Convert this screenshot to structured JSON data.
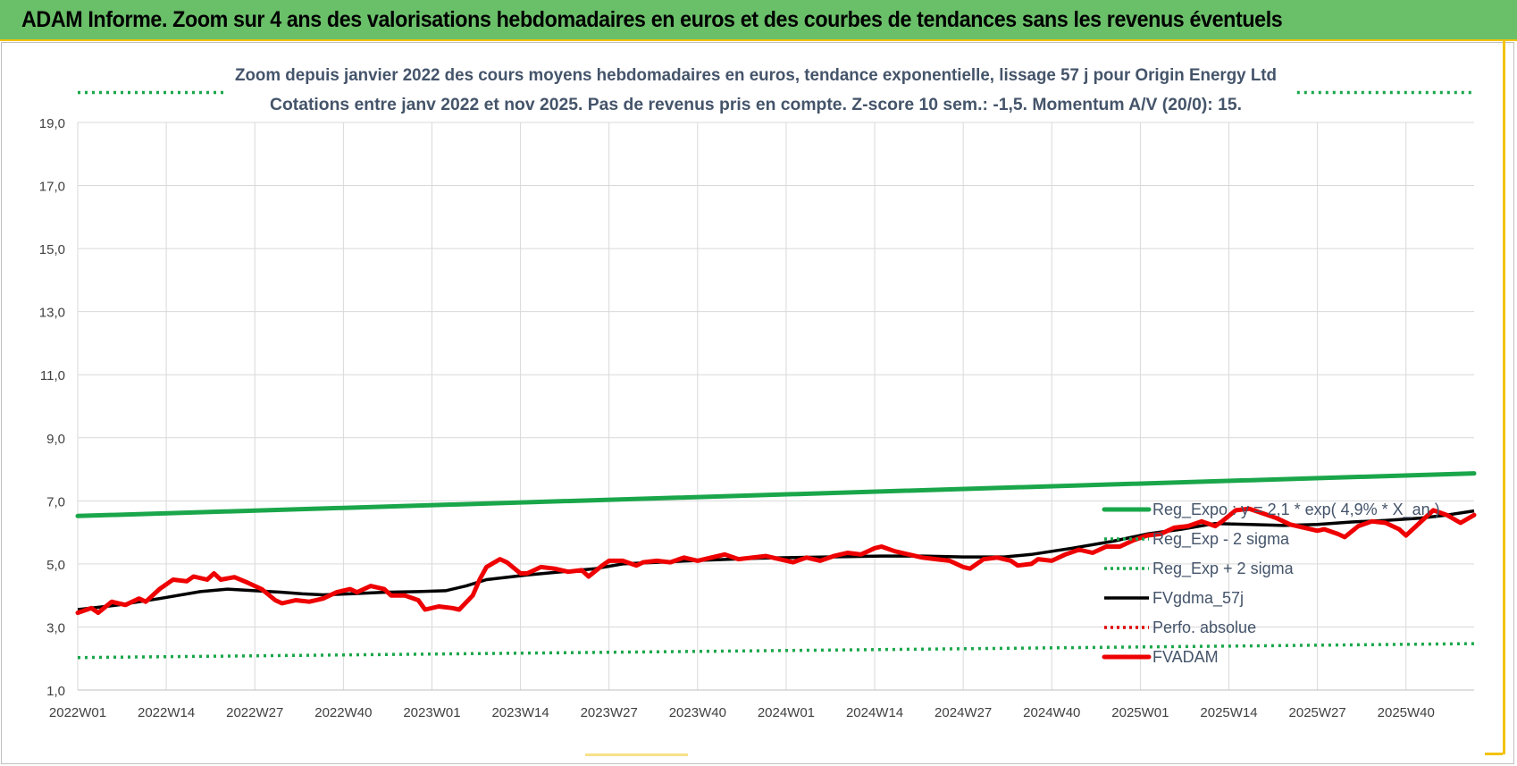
{
  "page": {
    "banner_title": "ADAM Informe. Zoom sur 4 ans des valorisations hebdomadaires en euros et des courbes de tendances sans les revenus éventuels",
    "banner_color": "#6abf69"
  },
  "chart_data": {
    "type": "line",
    "title": "Zoom depuis janvier 2022 des cours moyens hebdomadaires en euros, tendance exponentielle, lissage 57 j pour Origin Energy Ltd",
    "subtitle": "Cotations entre janv 2022 et nov 2025. Pas de revenus pris en compte. Z-score 10 sem.: -1,5. Momentum A/V (20/0): 15.",
    "xlabel": "",
    "ylabel": "",
    "ylim": [
      1.0,
      19.0
    ],
    "yticks": [
      "1,0",
      "3,0",
      "5,0",
      "7,0",
      "9,0",
      "11,0",
      "13,0",
      "15,0",
      "17,0",
      "19,0"
    ],
    "x_ticks": [
      "2022W01",
      "2022W14",
      "2022W27",
      "2022W40",
      "2023W01",
      "2023W14",
      "2023W27",
      "2023W40",
      "2024W01",
      "2024W14",
      "2024W27",
      "2024W40",
      "2025W01",
      "2025W14",
      "2025W27",
      "2025W40"
    ],
    "n_weeks": 206,
    "grid": true,
    "legend_position": "lower-right",
    "series": [
      {
        "name": "Reg_Expo : y = 2,1 * exp( 4,9% * X_an )",
        "color": "#1aa64a",
        "style": "solid-thick",
        "points": [
          [
            0,
            6.52
          ],
          [
            205,
            7.87
          ]
        ]
      },
      {
        "name": "Reg_Exp - 2 sigma",
        "color": "#1aa64a",
        "style": "dotted",
        "points": [
          [
            0,
            2.03
          ],
          [
            205,
            2.47
          ]
        ]
      },
      {
        "name": "Reg_Exp + 2 sigma",
        "color": "#1aa64a",
        "style": "dotted",
        "points": [
          [
            0,
            19.95
          ],
          [
            22,
            19.95
          ]
        ],
        "points_b": [
          [
            179,
            19.95
          ],
          [
            205,
            19.95
          ]
        ]
      },
      {
        "name": "FVgdma_57j",
        "color": "#000000",
        "style": "solid",
        "points": [
          [
            0,
            3.55
          ],
          [
            6,
            3.7
          ],
          [
            12,
            3.9
          ],
          [
            18,
            4.12
          ],
          [
            22,
            4.2
          ],
          [
            26,
            4.15
          ],
          [
            30,
            4.1
          ],
          [
            33,
            4.05
          ],
          [
            36,
            4.02
          ],
          [
            40,
            4.05
          ],
          [
            45,
            4.1
          ],
          [
            50,
            4.12
          ],
          [
            54,
            4.15
          ],
          [
            57,
            4.3
          ],
          [
            60,
            4.5
          ],
          [
            66,
            4.65
          ],
          [
            71,
            4.75
          ],
          [
            76,
            4.85
          ],
          [
            80,
            5.0
          ],
          [
            85,
            5.05
          ],
          [
            92,
            5.12
          ],
          [
            100,
            5.18
          ],
          [
            110,
            5.22
          ],
          [
            118,
            5.25
          ],
          [
            124,
            5.25
          ],
          [
            130,
            5.22
          ],
          [
            136,
            5.22
          ],
          [
            140,
            5.3
          ],
          [
            146,
            5.5
          ],
          [
            152,
            5.72
          ],
          [
            157,
            5.95
          ],
          [
            162,
            6.1
          ],
          [
            167,
            6.28
          ],
          [
            172,
            6.25
          ],
          [
            177,
            6.22
          ],
          [
            182,
            6.25
          ],
          [
            187,
            6.33
          ],
          [
            192,
            6.38
          ],
          [
            197,
            6.45
          ],
          [
            201,
            6.55
          ],
          [
            205,
            6.68
          ]
        ]
      },
      {
        "name": "Perfo. absolue",
        "color": "#e00000",
        "style": "dotted",
        "points": []
      },
      {
        "name": "FVADAM",
        "color": "#ee0000",
        "style": "solid-thick",
        "points": [
          [
            0,
            3.45
          ],
          [
            2,
            3.6
          ],
          [
            3,
            3.45
          ],
          [
            5,
            3.8
          ],
          [
            7,
            3.7
          ],
          [
            9,
            3.9
          ],
          [
            10,
            3.8
          ],
          [
            12,
            4.2
          ],
          [
            14,
            4.5
          ],
          [
            16,
            4.45
          ],
          [
            17,
            4.6
          ],
          [
            19,
            4.5
          ],
          [
            20,
            4.7
          ],
          [
            21,
            4.5
          ],
          [
            23,
            4.58
          ],
          [
            25,
            4.4
          ],
          [
            27,
            4.2
          ],
          [
            29,
            3.85
          ],
          [
            30,
            3.75
          ],
          [
            32,
            3.85
          ],
          [
            34,
            3.8
          ],
          [
            36,
            3.9
          ],
          [
            38,
            4.1
          ],
          [
            40,
            4.2
          ],
          [
            41,
            4.1
          ],
          [
            43,
            4.3
          ],
          [
            45,
            4.2
          ],
          [
            46,
            4.0
          ],
          [
            48,
            4.0
          ],
          [
            50,
            3.85
          ],
          [
            51,
            3.55
          ],
          [
            53,
            3.65
          ],
          [
            55,
            3.6
          ],
          [
            56,
            3.55
          ],
          [
            58,
            4.0
          ],
          [
            59,
            4.5
          ],
          [
            60,
            4.9
          ],
          [
            62,
            5.15
          ],
          [
            63,
            5.05
          ],
          [
            65,
            4.7
          ],
          [
            66,
            4.7
          ],
          [
            68,
            4.9
          ],
          [
            70,
            4.85
          ],
          [
            72,
            4.75
          ],
          [
            74,
            4.8
          ],
          [
            75,
            4.6
          ],
          [
            77,
            4.95
          ],
          [
            78,
            5.1
          ],
          [
            80,
            5.1
          ],
          [
            82,
            4.95
          ],
          [
            83,
            5.05
          ],
          [
            85,
            5.1
          ],
          [
            87,
            5.05
          ],
          [
            89,
            5.2
          ],
          [
            91,
            5.1
          ],
          [
            93,
            5.2
          ],
          [
            95,
            5.3
          ],
          [
            97,
            5.15
          ],
          [
            99,
            5.2
          ],
          [
            101,
            5.25
          ],
          [
            103,
            5.15
          ],
          [
            105,
            5.05
          ],
          [
            107,
            5.2
          ],
          [
            109,
            5.1
          ],
          [
            111,
            5.25
          ],
          [
            113,
            5.35
          ],
          [
            115,
            5.3
          ],
          [
            117,
            5.5
          ],
          [
            118,
            5.55
          ],
          [
            120,
            5.4
          ],
          [
            122,
            5.3
          ],
          [
            124,
            5.2
          ],
          [
            126,
            5.15
          ],
          [
            128,
            5.1
          ],
          [
            130,
            4.9
          ],
          [
            131,
            4.85
          ],
          [
            133,
            5.15
          ],
          [
            135,
            5.2
          ],
          [
            137,
            5.1
          ],
          [
            138,
            4.95
          ],
          [
            140,
            5.0
          ],
          [
            141,
            5.15
          ],
          [
            143,
            5.1
          ],
          [
            145,
            5.3
          ],
          [
            147,
            5.45
          ],
          [
            149,
            5.35
          ],
          [
            151,
            5.55
          ],
          [
            153,
            5.55
          ],
          [
            155,
            5.75
          ],
          [
            157,
            5.9
          ],
          [
            159,
            5.95
          ],
          [
            161,
            6.15
          ],
          [
            163,
            6.2
          ],
          [
            165,
            6.35
          ],
          [
            167,
            6.2
          ],
          [
            168,
            6.35
          ],
          [
            170,
            6.7
          ],
          [
            172,
            6.75
          ],
          [
            174,
            6.6
          ],
          [
            176,
            6.45
          ],
          [
            178,
            6.25
          ],
          [
            180,
            6.15
          ],
          [
            182,
            6.05
          ],
          [
            183,
            6.1
          ],
          [
            185,
            5.95
          ],
          [
            186,
            5.85
          ],
          [
            188,
            6.2
          ],
          [
            190,
            6.35
          ],
          [
            192,
            6.3
          ],
          [
            194,
            6.1
          ],
          [
            195,
            5.9
          ],
          [
            197,
            6.3
          ],
          [
            199,
            6.7
          ],
          [
            201,
            6.55
          ],
          [
            203,
            6.3
          ],
          [
            205,
            6.55
          ]
        ]
      }
    ]
  }
}
